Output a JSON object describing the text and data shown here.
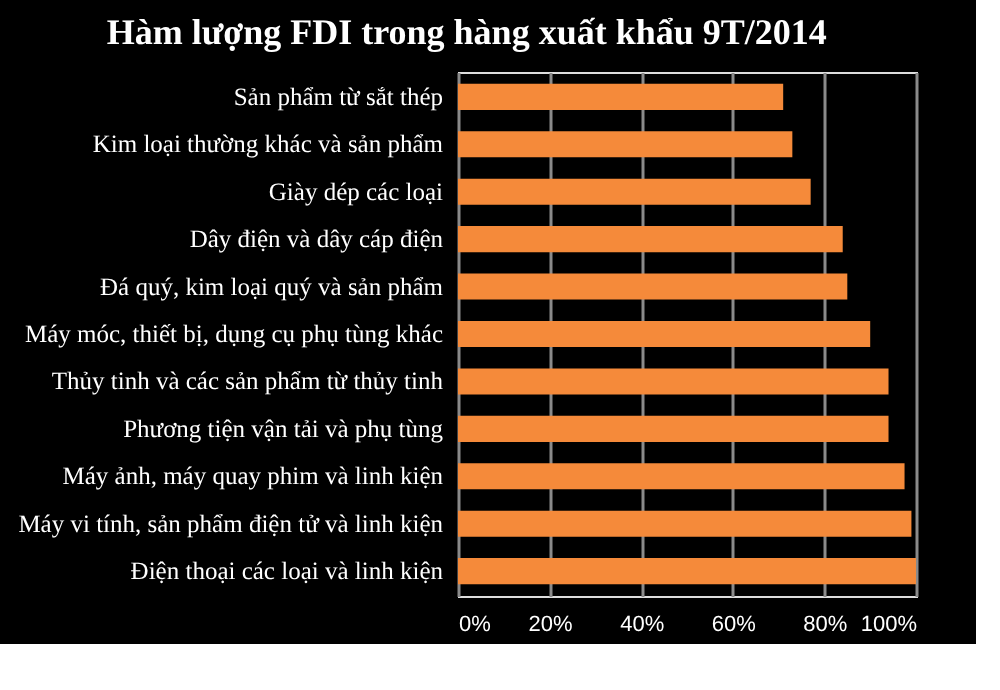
{
  "chart_data": {
    "type": "bar",
    "orientation": "horizontal",
    "title": "Hàm lượng FDI trong hàng xuất khẩu 9T/2014",
    "categories": [
      "Sản phẩm từ sắt thép",
      "Kim loại thường khác và sản phẩm",
      "Giày dép các loại",
      "Dây điện và dây cáp điện",
      "Đá quý, kim loại quý và sản phẩm",
      "Máy móc, thiết bị, dụng cụ phụ tùng khác",
      "Thủy tinh và các sản phẩm từ thủy tinh",
      "Phương tiện vận tải và phụ tùng",
      "Máy ảnh, máy quay phim và linh kiện",
      "Máy vi tính, sản phẩm điện tử và linh kiện",
      "Điện thoại các loại và linh kiện"
    ],
    "values": [
      71,
      73,
      77,
      84,
      85,
      90,
      94,
      94,
      97.5,
      99,
      100
    ],
    "color": "#f58a3a",
    "xlim": [
      0,
      100
    ],
    "xticks": [
      {
        "value": 0,
        "label": "0%"
      },
      {
        "value": 20,
        "label": "20%"
      },
      {
        "value": 40,
        "label": "40%"
      },
      {
        "value": 60,
        "label": "60%"
      },
      {
        "value": 80,
        "label": "80%"
      },
      {
        "value": 100,
        "label": "100%"
      }
    ],
    "grid": "x"
  }
}
